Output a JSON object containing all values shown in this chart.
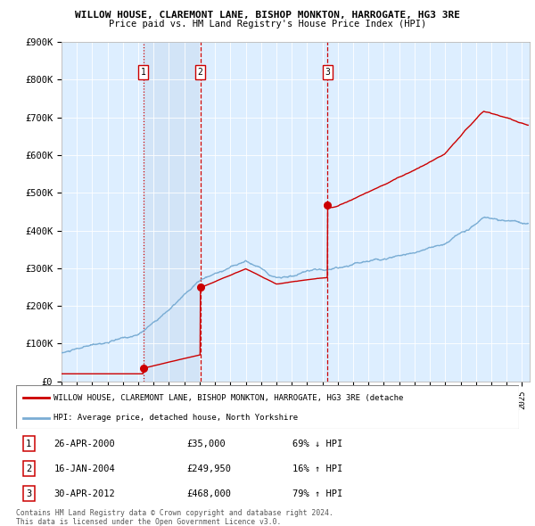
{
  "title1": "WILLOW HOUSE, CLAREMONT LANE, BISHOP MONKTON, HARROGATE, HG3 3RE",
  "title2": "Price paid vs. HM Land Registry's House Price Index (HPI)",
  "ylabel_ticks": [
    "£0",
    "£100K",
    "£200K",
    "£300K",
    "£400K",
    "£500K",
    "£600K",
    "£700K",
    "£800K",
    "£900K"
  ],
  "ylim": [
    0,
    900000
  ],
  "xlim_start": 1995.0,
  "xlim_end": 2025.5,
  "sale_dates": [
    2000.32,
    2004.04,
    2012.33
  ],
  "sale_prices": [
    35000,
    249950,
    468000
  ],
  "sale_labels": [
    "1",
    "2",
    "3"
  ],
  "sale_hpi_pct": [
    "69% ↓ HPI",
    "16% ↑ HPI",
    "79% ↑ HPI"
  ],
  "sale_display": [
    "26-APR-2000",
    "16-JAN-2004",
    "30-APR-2012"
  ],
  "sale_amounts": [
    "£35,000",
    "£249,950",
    "£468,000"
  ],
  "red_color": "#cc0000",
  "blue_color": "#7aadd4",
  "bg_color": "#ddeeff",
  "legend_line1": "WILLOW HOUSE, CLAREMONT LANE, BISHOP MONKTON, HARROGATE, HG3 3RE (detache",
  "legend_line2": "HPI: Average price, detached house, North Yorkshire",
  "footnote1": "Contains HM Land Registry data © Crown copyright and database right 2024.",
  "footnote2": "This data is licensed under the Open Government Licence v3.0."
}
